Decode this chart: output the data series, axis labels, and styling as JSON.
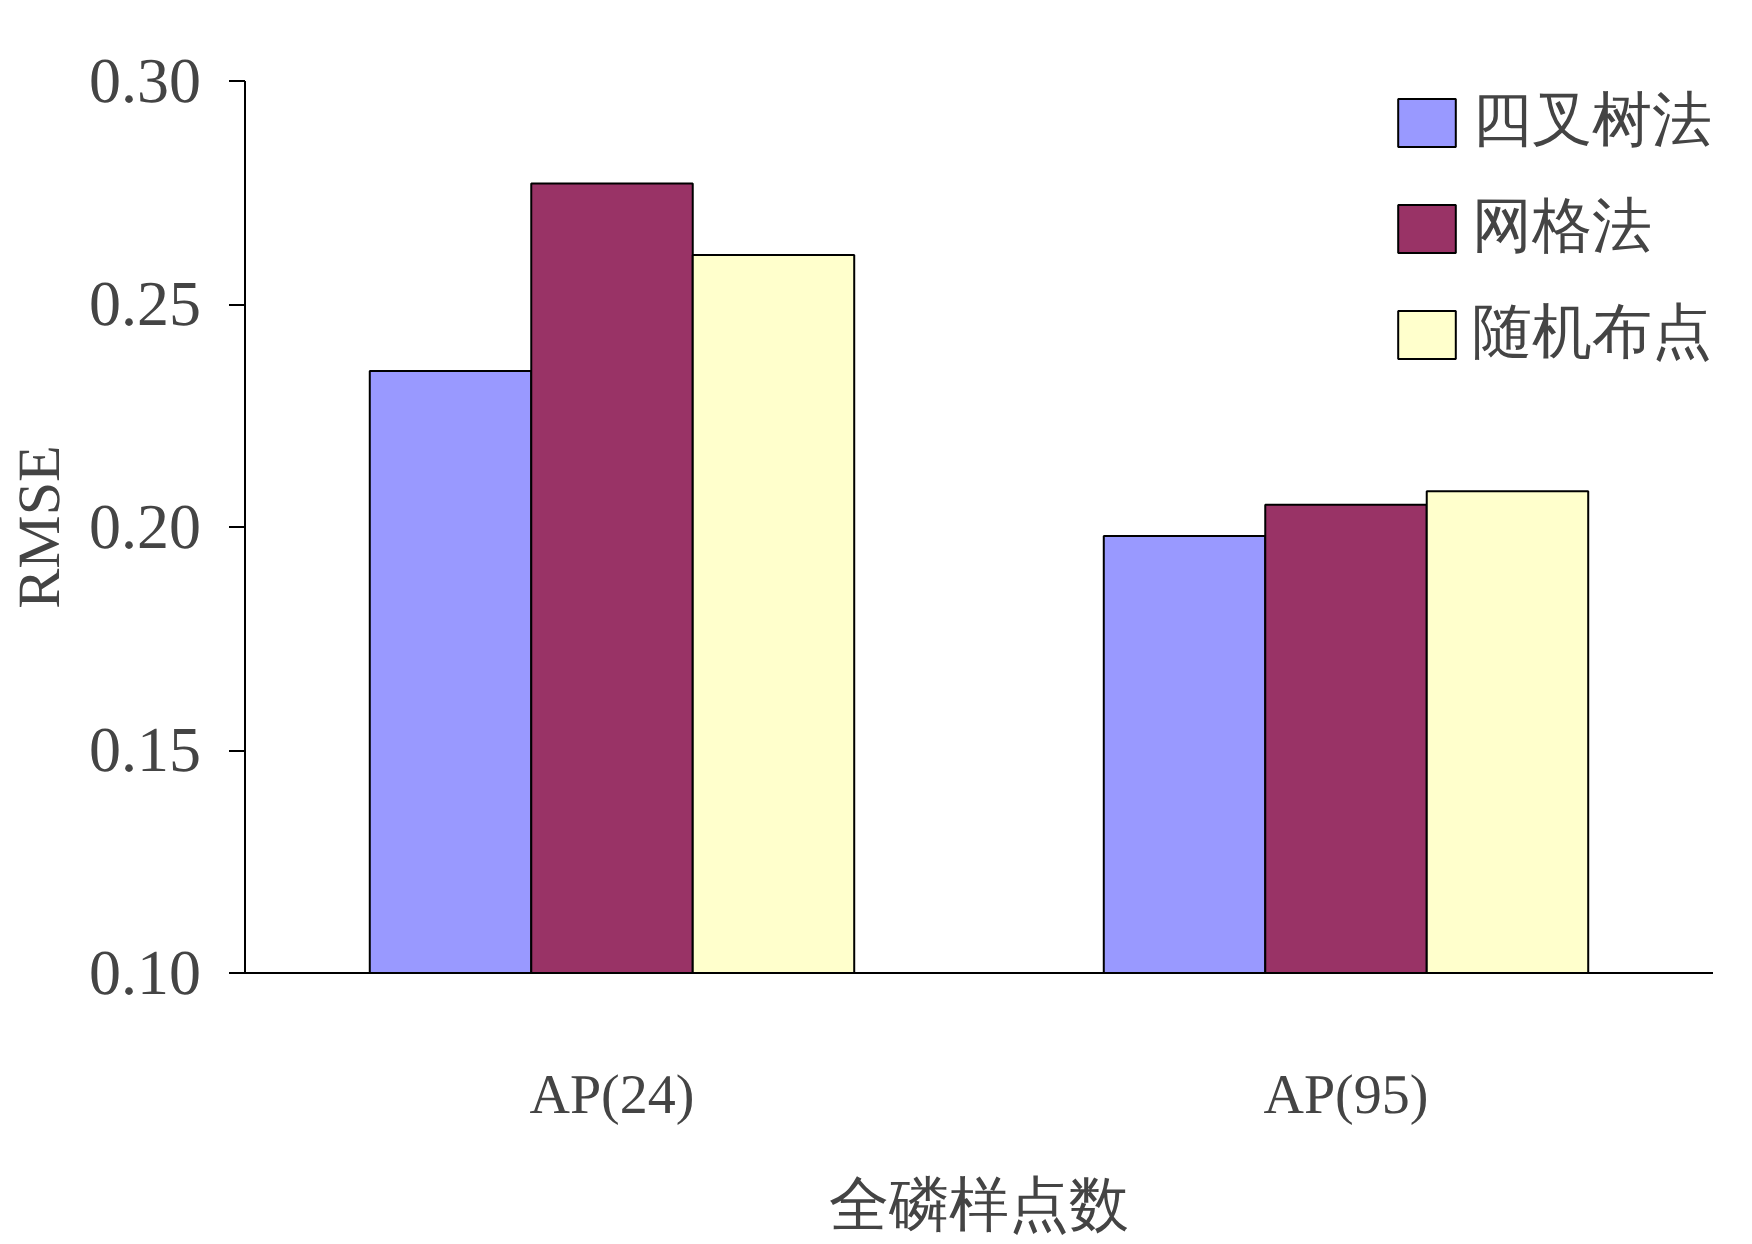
{
  "chart_data": {
    "type": "bar",
    "xlabel": "全磷样点数",
    "ylabel": "RMSE",
    "categories": [
      "AP(24)",
      "AP(95)"
    ],
    "series": [
      {
        "name": "四叉树法",
        "color": "#9999ff",
        "values": [
          0.235,
          0.198
        ]
      },
      {
        "name": "网格法",
        "color": "#993366",
        "values": [
          0.277,
          0.205
        ]
      },
      {
        "name": "随机布点",
        "color": "#ffffcc",
        "values": [
          0.261,
          0.208
        ]
      }
    ],
    "ylim": [
      0.1,
      0.3
    ],
    "yticks": [
      {
        "value": 0.1,
        "label": "0.10"
      },
      {
        "value": 0.15,
        "label": "0.15"
      },
      {
        "value": 0.2,
        "label": "0.20"
      },
      {
        "value": 0.25,
        "label": "0.25"
      },
      {
        "value": 0.3,
        "label": "0.30"
      }
    ],
    "grid": false,
    "legend": "top right"
  }
}
